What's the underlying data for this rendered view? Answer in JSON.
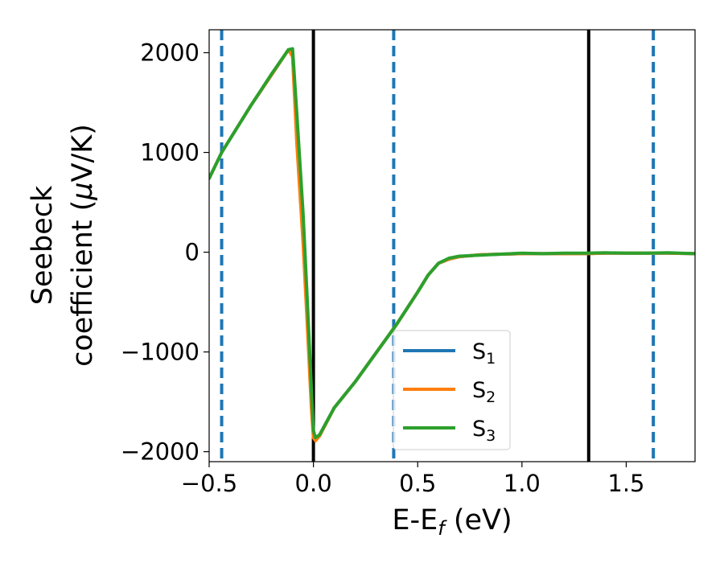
{
  "chart_data": {
    "type": "line",
    "xlabel": "E-E",
    "xlabel_sub": "f",
    "xlabel_unit": " (eV)",
    "ylabel_line1": "Seebeck",
    "ylabel_line2_text": "coefficient  (",
    "ylabel_mu": "μ",
    "ylabel_line2_unit": "V/K)",
    "xlim": [
      -0.5,
      1.83
    ],
    "ylim": [
      -2100,
      2230
    ],
    "xticks": [
      -0.5,
      0.0,
      0.5,
      1.0,
      1.5
    ],
    "xtick_labels": [
      "−0.5",
      "0.0",
      "0.5",
      "1.0",
      "1.5"
    ],
    "yticks": [
      2000,
      1000,
      0,
      -1000,
      -2000
    ],
    "ytick_labels": [
      "2000",
      "1000",
      "0",
      "−1000",
      "−2000"
    ],
    "vlines_solid": [
      0.0,
      1.32
    ],
    "vlines_dashed": [
      -0.44,
      0.385,
      1.63
    ],
    "legend_position": "lower-center",
    "series": [
      {
        "name": "S",
        "sub": "1",
        "color": "#1f77b4",
        "x": [
          -0.5,
          -0.44,
          -0.3,
          -0.2,
          -0.12,
          -0.1,
          -0.08,
          -0.05,
          -0.03,
          -0.01,
          0.0,
          0.01,
          0.03,
          0.1,
          0.2,
          0.3,
          0.4,
          0.5,
          0.55,
          0.6,
          0.65,
          0.7,
          0.8,
          0.9,
          1.0,
          1.1,
          1.2,
          1.3,
          1.4,
          1.5,
          1.6,
          1.7,
          1.83
        ],
        "y": [
          740,
          1000,
          1470,
          1780,
          2030,
          1980,
          1200,
          200,
          -600,
          -1450,
          -1810,
          -1870,
          -1830,
          -1560,
          -1300,
          -1010,
          -720,
          -400,
          -230,
          -110,
          -70,
          -45,
          -25,
          -20,
          -15,
          -15,
          -15,
          -15,
          -10,
          -10,
          -10,
          -10,
          -15
        ]
      },
      {
        "name": "S",
        "sub": "2",
        "color": "#ff7f0e",
        "x": [
          -0.5,
          -0.44,
          -0.3,
          -0.2,
          -0.12,
          -0.1,
          -0.08,
          -0.05,
          -0.03,
          -0.01,
          0.0,
          0.01,
          0.03,
          0.1,
          0.2,
          0.3,
          0.4,
          0.5,
          0.55,
          0.6,
          0.65,
          0.7,
          0.8,
          0.9,
          1.0,
          1.1,
          1.2,
          1.3,
          1.4,
          1.5,
          1.6,
          1.7,
          1.83
        ],
        "y": [
          740,
          1000,
          1470,
          1780,
          2030,
          1960,
          1100,
          100,
          -700,
          -1550,
          -1860,
          -1890,
          -1840,
          -1560,
          -1300,
          -1010,
          -720,
          -400,
          -230,
          -110,
          -70,
          -45,
          -25,
          -20,
          -15,
          -15,
          -15,
          -15,
          -10,
          -10,
          -10,
          -10,
          -15
        ]
      },
      {
        "name": "S",
        "sub": "3",
        "color": "#2ca02c",
        "x": [
          -0.5,
          -0.44,
          -0.3,
          -0.2,
          -0.12,
          -0.1,
          -0.08,
          -0.05,
          -0.03,
          -0.01,
          0.0,
          0.01,
          0.03,
          0.1,
          0.2,
          0.3,
          0.4,
          0.5,
          0.55,
          0.6,
          0.65,
          0.7,
          0.8,
          0.9,
          1.0,
          1.1,
          1.2,
          1.3,
          1.4,
          1.5,
          1.6,
          1.7,
          1.83
        ],
        "y": [
          740,
          1000,
          1470,
          1790,
          2030,
          2040,
          1400,
          400,
          -450,
          -1350,
          -1790,
          -1860,
          -1830,
          -1560,
          -1300,
          -1010,
          -720,
          -400,
          -230,
          -110,
          -60,
          -40,
          -30,
          -20,
          -10,
          -15,
          -10,
          -10,
          -5,
          -10,
          -10,
          -5,
          -15
        ]
      }
    ]
  }
}
